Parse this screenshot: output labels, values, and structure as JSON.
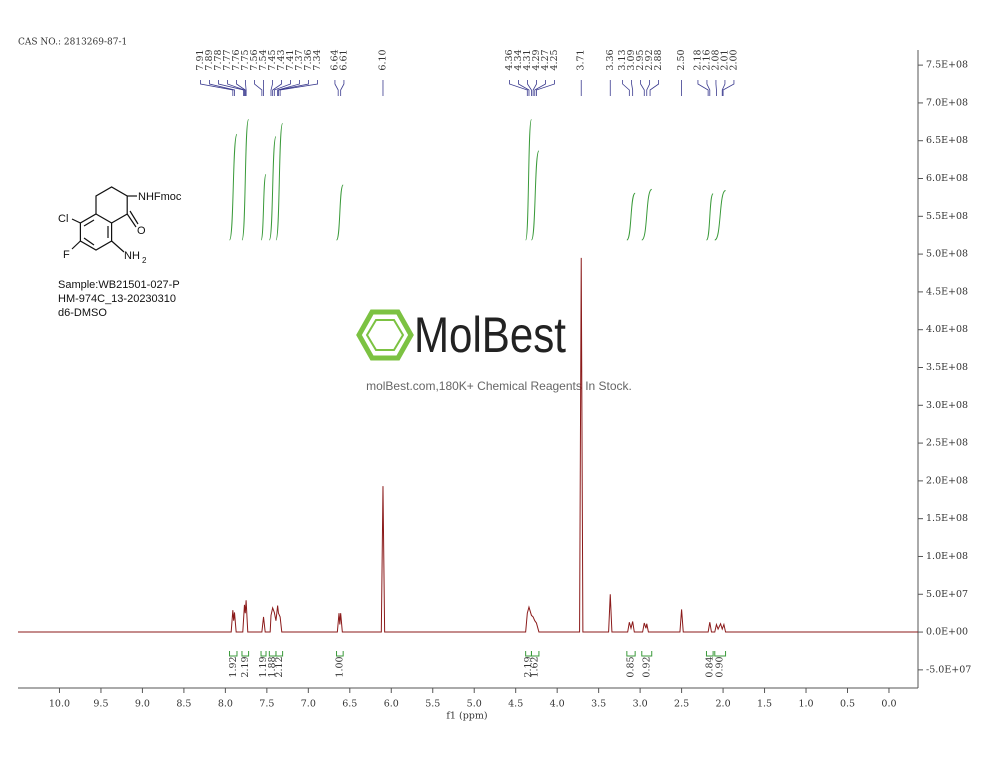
{
  "header": {
    "cas": "CAS NO.: 2813269-87-1"
  },
  "structure": {
    "substituent": "NHFmoc",
    "oxygen": "O",
    "chlorine": "Cl",
    "fluorine": "F",
    "amine": "NH",
    "amine_subscript": "2"
  },
  "sample": [
    "Sample:WB21501-027-P",
    "HM-974C_13-20230310",
    "d6-DMSO"
  ],
  "watermark": {
    "brand": "MolBest",
    "tagline": "molBest.com,180K+ Chemical Reagents In Stock."
  },
  "chart_data": {
    "type": "line",
    "x_label": "f1 (ppm)",
    "x": [
      10.5,
      7.93,
      7.91,
      7.9,
      7.89,
      7.87,
      7.79,
      7.77,
      7.76,
      7.75,
      7.73,
      7.56,
      7.54,
      7.52,
      7.46,
      7.45,
      7.43,
      7.41,
      7.39,
      7.37,
      7.36,
      7.34,
      7.32,
      6.65,
      6.63,
      6.62,
      6.61,
      6.59,
      6.12,
      6.1,
      6.08,
      4.38,
      4.36,
      4.34,
      4.31,
      4.29,
      4.27,
      4.25,
      4.22,
      3.73,
      3.71,
      3.69,
      3.38,
      3.36,
      3.34,
      3.15,
      3.13,
      3.11,
      3.09,
      3.07,
      2.97,
      2.95,
      2.93,
      2.92,
      2.9,
      2.52,
      2.5,
      2.48,
      2.18,
      2.16,
      2.14,
      2.1,
      2.08,
      2.06,
      2.03,
      2.01,
      1.99,
      1.97,
      -0.35
    ],
    "series": [
      {
        "color": "#8b1a1a",
        "values": [
          0,
          0,
          29000000,
          15000000,
          26000000,
          0,
          0,
          36000000,
          25000000,
          42000000,
          0,
          0,
          20000000,
          0,
          0,
          22000000,
          32000000,
          26000000,
          15000000,
          35000000,
          25000000,
          20000000,
          0,
          0,
          25000000,
          10000000,
          25000000,
          0,
          0,
          193000000,
          0,
          0,
          25000000,
          33000000,
          22000000,
          20000000,
          15000000,
          12000000,
          0,
          0,
          495000000,
          0,
          0,
          50000000,
          0,
          0,
          13000000,
          5000000,
          14000000,
          0,
          0,
          12000000,
          5000000,
          11000000,
          0,
          0,
          30000000,
          0,
          0,
          13000000,
          0,
          0,
          10000000,
          4000000,
          11000000,
          4000000,
          10000000,
          0,
          0
        ]
      }
    ],
    "xlim": [
      10.5,
      -0.35
    ],
    "xticks": [
      {
        "value": 10,
        "label": "10.0"
      },
      9.5,
      {
        "value": 9,
        "label": "9.0"
      },
      8.5,
      {
        "value": 8,
        "label": "8.0"
      },
      7.5,
      {
        "value": 7,
        "label": "7.0"
      },
      6.5,
      {
        "value": 6,
        "label": "6.0"
      },
      5.5,
      {
        "value": 5,
        "label": "5.0"
      },
      4.5,
      {
        "value": 4,
        "label": "4.0"
      },
      3.5,
      {
        "value": 3,
        "label": "3.0"
      },
      2.5,
      {
        "value": 2,
        "label": "2.0"
      },
      1.5,
      {
        "value": 1,
        "label": "1.0"
      },
      0.5,
      {
        "value": 0,
        "label": "0.0"
      }
    ],
    "ylim": [
      -74000000,
      770000000
    ],
    "yticks": [
      {
        "value": 750000000,
        "label": "7.5E+08"
      },
      {
        "value": 700000000,
        "label": "7.0E+08"
      },
      {
        "value": 650000000,
        "label": "6.5E+08"
      },
      {
        "value": 600000000,
        "label": "6.0E+08"
      },
      {
        "value": 550000000,
        "label": "5.5E+08"
      },
      {
        "value": 500000000,
        "label": "5.0E+08"
      },
      {
        "value": 450000000,
        "label": "4.5E+08"
      },
      {
        "value": 400000000,
        "label": "4.0E+08"
      },
      {
        "value": 350000000,
        "label": "3.5E+08"
      },
      {
        "value": 300000000,
        "label": "3.0E+08"
      },
      {
        "value": 250000000,
        "label": "2.5E+08"
      },
      {
        "value": 200000000,
        "label": "2.0E+08"
      },
      {
        "value": 150000000,
        "label": "1.5E+08"
      },
      {
        "value": 100000000,
        "label": "1.0E+08"
      },
      {
        "value": 50000000,
        "label": "5.0E+07"
      },
      {
        "value": 0,
        "label": "0.0E+00"
      },
      {
        "value": -50000000,
        "label": "-5.0E+07"
      }
    ],
    "peak_color": "#3b3b8f",
    "peak_labels": [
      7.91,
      7.89,
      7.78,
      7.77,
      7.76,
      7.75,
      7.56,
      7.54,
      7.45,
      7.43,
      7.41,
      7.37,
      7.36,
      7.34,
      6.64,
      6.61,
      {
        "value": 6.1,
        "label": "6.10"
      },
      4.36,
      4.34,
      4.31,
      4.29,
      4.27,
      4.25,
      3.71,
      3.36,
      3.13,
      3.09,
      2.95,
      2.92,
      2.88,
      {
        "value": 2.5,
        "label": "2.50"
      },
      2.18,
      2.16,
      2.08,
      2.01,
      {
        "value": 2,
        "label": "2.00"
      }
    ],
    "integral_color": "#3a9a3a",
    "integrals": [
      {
        "range": [
          7.95,
          7.86
        ],
        "value": 1.92
      },
      {
        "range": [
          7.8,
          7.72
        ],
        "value": 2.19
      },
      {
        "range": [
          7.57,
          7.51
        ],
        "value": 1.19
      },
      {
        "range": [
          7.47,
          7.39
        ],
        "value": 1.88
      },
      {
        "range": [
          7.39,
          7.31
        ],
        "value": 2.12
      },
      {
        "range": [
          6.66,
          6.58
        ],
        "value": 1,
        "label": "1.00"
      },
      {
        "range": [
          4.38,
          4.31
        ],
        "value": 2.19
      },
      {
        "range": [
          4.31,
          4.22
        ],
        "value": 1.62
      },
      {
        "range": [
          3.16,
          3.06
        ],
        "value": 0.85
      },
      {
        "range": [
          2.98,
          2.86
        ],
        "value": 0.92
      },
      {
        "range": [
          2.2,
          2.12
        ],
        "value": 0.84
      },
      {
        "range": [
          2.1,
          1.97
        ],
        "value": 0.9,
        "label": "0.90"
      }
    ]
  }
}
